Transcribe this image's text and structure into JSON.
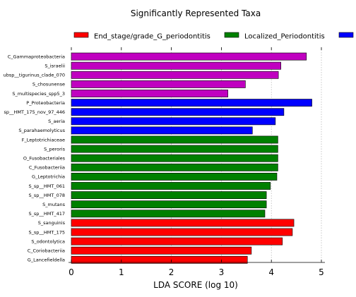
{
  "chart_data": {
    "type": "bar",
    "orientation": "horizontal",
    "title": "Significantly Represented Taxa",
    "xlabel": "LDA SCORE (log 10)",
    "ylabel": "",
    "xlim": [
      0,
      5
    ],
    "xticks": [
      0,
      1,
      2,
      3,
      4,
      5
    ],
    "grid": "x",
    "legend_position": "top",
    "series": [
      {
        "name": "End_stage/grade_G_periodontitis",
        "color": "#ff0000",
        "categories": [
          "S_sanguinis",
          "S_sp__HMT_175",
          "S_odontolytica",
          "C_Coriobacteriia",
          "G_Lancefieldella"
        ],
        "values": [
          4.45,
          4.42,
          4.22,
          3.6,
          3.52
        ]
      },
      {
        "name": "Localized_Periodontitis",
        "color": "#008000",
        "categories": [
          "F_Leptotrichiaceae",
          "S_peroris",
          "O_Fusobacteriales",
          "C_Fusobacteriia",
          "G_Leptotrichia",
          "S_sp__HMT_061",
          "S_sp__HMT_078",
          "S_mutans",
          "S_sp__HMT_417"
        ],
        "values": [
          4.13,
          4.13,
          4.13,
          4.13,
          4.11,
          3.98,
          3.9,
          3.9,
          3.87
        ]
      },
      {
        "name": "",
        "color": "#0000ff",
        "categories": [
          "P_Proteobacteria",
          "sp__HMT_175_nov_97_446",
          "S_aeria",
          "S_parahaemolyticus"
        ],
        "values": [
          4.81,
          4.25,
          4.08,
          3.62
        ]
      },
      {
        "name": "",
        "color": "#c000c0",
        "categories": [
          "C_Gammaproteobacteria",
          "S_israelii",
          "ubsp__tigurinus_clade_070",
          "S_chosunense",
          "S_multispecies_spp5_3"
        ],
        "values": [
          4.7,
          4.19,
          4.14,
          3.48,
          3.13
        ]
      }
    ],
    "bar_order_top_to_bottom": [
      "C_Gammaproteobacteria",
      "S_israelii",
      "ubsp__tigurinus_clade_070",
      "S_chosunense",
      "S_multispecies_spp5_3",
      "P_Proteobacteria",
      "sp__HMT_175_nov_97_446",
      "S_aeria",
      "S_parahaemolyticus",
      "F_Leptotrichiaceae",
      "S_peroris",
      "O_Fusobacteriales",
      "C_Fusobacteriia",
      "G_Leptotrichia",
      "S_sp__HMT_061",
      "S_sp__HMT_078",
      "S_mutans",
      "S_sp__HMT_417",
      "S_sanguinis",
      "S_sp__HMT_175",
      "S_odontolytica",
      "C_Coriobacteriia",
      "G_Lancefieldella"
    ]
  }
}
